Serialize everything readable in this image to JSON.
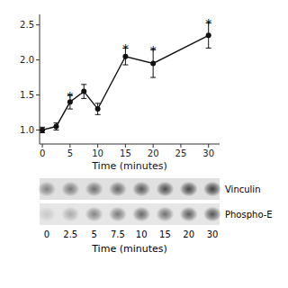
{
  "chart_data": [
    {
      "type": "line",
      "xlabel": "Time (minutes)",
      "x": [
        0,
        2.5,
        5,
        7.5,
        10,
        15,
        20,
        30
      ],
      "values": [
        1.0,
        1.05,
        1.4,
        1.55,
        1.3,
        2.05,
        1.95,
        2.35
      ],
      "errors": [
        0.04,
        0.05,
        0.1,
        0.1,
        0.08,
        0.12,
        0.2,
        0.18
      ],
      "significant": [
        false,
        false,
        true,
        false,
        false,
        true,
        true,
        true
      ],
      "significance_label": "*",
      "color": "#111111",
      "marker": "circle",
      "xlim": [
        -0.5,
        32
      ],
      "ylim": [
        0.8,
        2.65
      ],
      "xticks": [
        0,
        5,
        10,
        15,
        20,
        25,
        30
      ],
      "yticks": [
        {
          "value": 1.0,
          "label": "1.0"
        },
        {
          "value": 1.5,
          "label": "1.5"
        },
        {
          "value": 2.0,
          "label": "2.0"
        },
        {
          "value": 2.5,
          "label": "2.5"
        }
      ],
      "grid": false
    },
    {
      "type": "blot",
      "xlabel": "Time (minutes)",
      "categories": [
        "0",
        "2.5",
        "5",
        "7.5",
        "10",
        "15",
        "20",
        "30"
      ],
      "series": [
        {
          "name": "Vinculin",
          "values": [
            0.5,
            0.55,
            0.6,
            0.65,
            0.72,
            0.78,
            0.82,
            0.85
          ]
        },
        {
          "name": "Phospho-E",
          "values": [
            0.15,
            0.3,
            0.5,
            0.55,
            0.65,
            0.6,
            0.7,
            0.75
          ]
        }
      ]
    }
  ]
}
